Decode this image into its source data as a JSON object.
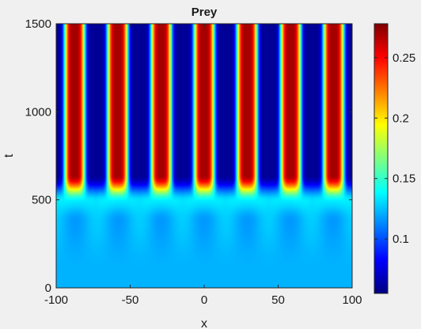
{
  "chart_data": {
    "type": "heatmap",
    "title": "Prey",
    "xlabel": "x",
    "ylabel": "t",
    "xlim": [
      -100,
      100
    ],
    "ylim": [
      0,
      1500
    ],
    "x_ticks": [
      "-100",
      "-50",
      "0",
      "50",
      "100"
    ],
    "y_ticks": [
      "0",
      "500",
      "1000",
      "1500"
    ],
    "colormap": "jet",
    "colorbar": {
      "range": [
        0.055,
        0.278
      ],
      "ticks": [
        "0.1",
        "0.15",
        "0.2",
        "0.25"
      ],
      "tick_values": [
        0.1,
        0.15,
        0.2,
        0.25
      ]
    },
    "background_value": 0.122,
    "peak_value": 0.27,
    "trough_value": 0.06,
    "stripe_onset_t": 550,
    "stripe_centers_x": [
      -87.5,
      -58.5,
      -29,
      0,
      29,
      58.5,
      87.5
    ]
  }
}
